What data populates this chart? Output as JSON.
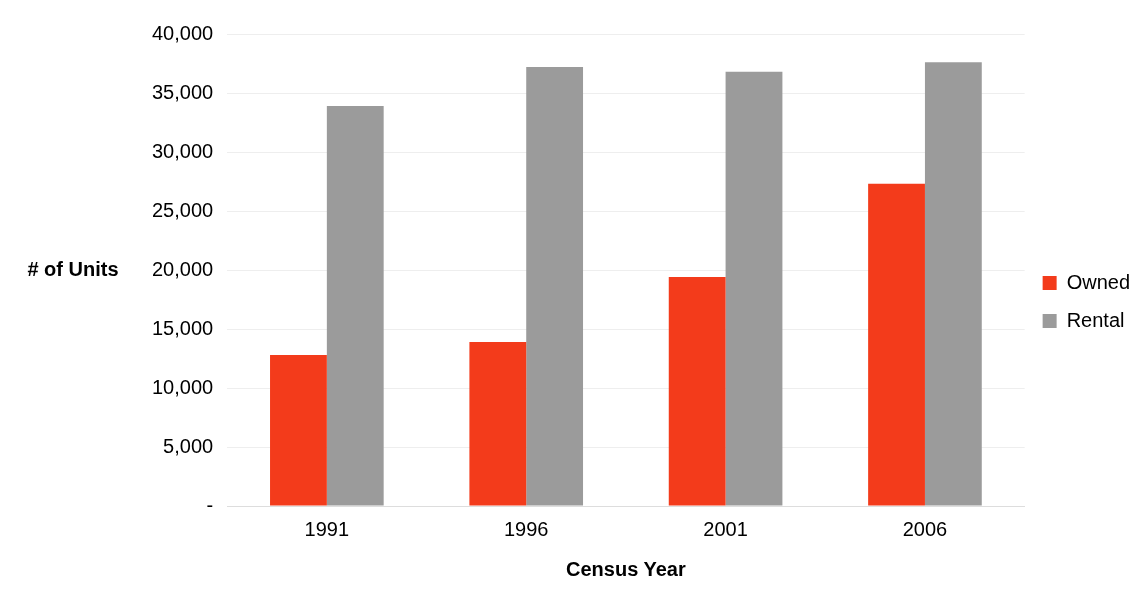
{
  "chart_data": {
    "type": "bar",
    "xlabel": "Census Year",
    "ylabel": "# of Units",
    "categories": [
      "1991",
      "1996",
      "2001",
      "2006"
    ],
    "series": [
      {
        "name": "Owned",
        "color": "#f33b1b",
        "values": [
          12800,
          13900,
          19400,
          27300
        ]
      },
      {
        "name": "Rental",
        "color": "#9b9b9b",
        "values": [
          33900,
          37200,
          36800,
          37600
        ]
      }
    ],
    "ylim": [
      0,
      40000
    ],
    "yticks": [
      {
        "value": 0,
        "label": "-"
      },
      {
        "value": 5000,
        "label": "5,000"
      },
      {
        "value": 10000,
        "label": "10,000"
      },
      {
        "value": 15000,
        "label": "15,000"
      },
      {
        "value": 20000,
        "label": "20,000"
      },
      {
        "value": 25000,
        "label": "25,000"
      },
      {
        "value": 30000,
        "label": "30,000"
      },
      {
        "value": 35000,
        "label": "35,000"
      },
      {
        "value": 40000,
        "label": "40,000"
      }
    ],
    "grid": "y",
    "legend": "right"
  }
}
